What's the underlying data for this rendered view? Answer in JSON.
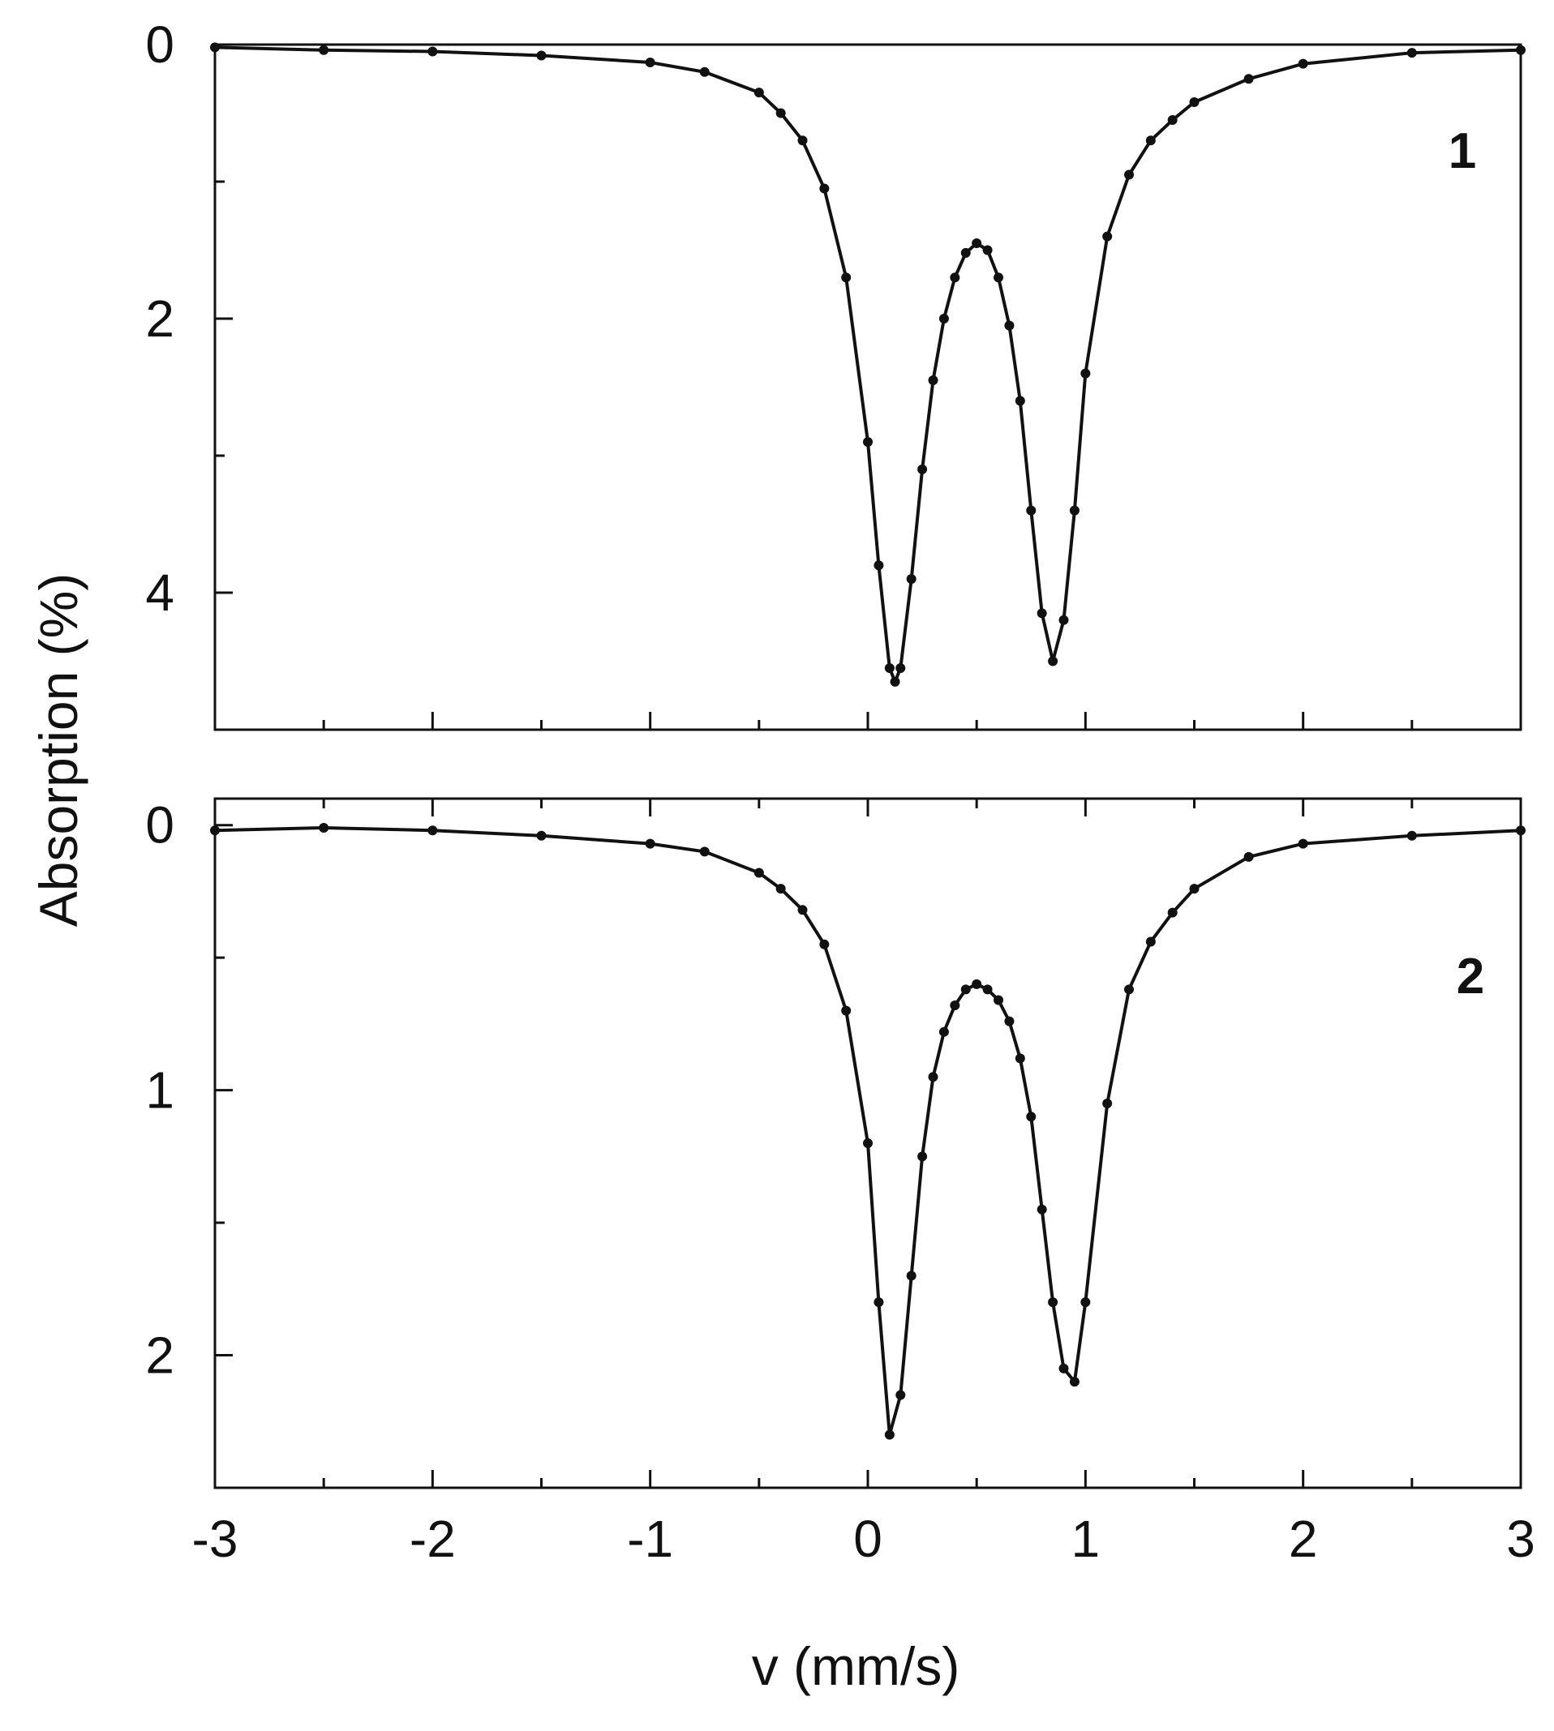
{
  "figure": {
    "ylabel": "Absorption (%)",
    "xlabel": "v (mm/s)"
  },
  "chart_data": [
    {
      "type": "scatter",
      "panel_label": "1",
      "xlim": [
        -3,
        3
      ],
      "ylim": [
        0,
        5.0
      ],
      "y_inverted": true,
      "x_ticks": [
        -3,
        -2,
        -1,
        0,
        1,
        2,
        3
      ],
      "x_tick_labels": [
        "-3",
        "-2",
        "-1",
        "0",
        "1",
        "2",
        "3"
      ],
      "y_ticks": [
        0,
        2,
        4
      ],
      "y_tick_labels": [
        "0",
        "2",
        "4"
      ],
      "series": [
        {
          "style": "points+fit",
          "color": "#111111",
          "x": [
            -3.0,
            -2.5,
            -2.0,
            -1.5,
            -1.0,
            -0.75,
            -0.5,
            -0.4,
            -0.3,
            -0.2,
            -0.1,
            0.0,
            0.05,
            0.1,
            0.125,
            0.15,
            0.2,
            0.25,
            0.3,
            0.35,
            0.4,
            0.45,
            0.5,
            0.55,
            0.6,
            0.65,
            0.7,
            0.75,
            0.8,
            0.85,
            0.9,
            0.95,
            1.0,
            1.1,
            1.2,
            1.3,
            1.4,
            1.5,
            1.75,
            2.0,
            2.5,
            3.0
          ],
          "y": [
            0.02,
            0.04,
            0.05,
            0.08,
            0.13,
            0.2,
            0.35,
            0.5,
            0.7,
            1.05,
            1.7,
            2.9,
            3.8,
            4.55,
            4.65,
            4.55,
            3.9,
            3.1,
            2.45,
            2.0,
            1.7,
            1.52,
            1.45,
            1.5,
            1.7,
            2.05,
            2.6,
            3.4,
            4.15,
            4.5,
            4.2,
            3.4,
            2.4,
            1.4,
            0.95,
            0.7,
            0.55,
            0.42,
            0.25,
            0.14,
            0.06,
            0.04
          ]
        }
      ]
    },
    {
      "type": "scatter",
      "panel_label": "2",
      "xlim": [
        -3,
        3
      ],
      "ylim": [
        -0.1,
        2.5
      ],
      "y_inverted": true,
      "x_ticks": [
        -3,
        -2,
        -1,
        0,
        1,
        2,
        3
      ],
      "x_tick_labels": [
        "-3",
        "-2",
        "-1",
        "0",
        "1",
        "2",
        "3"
      ],
      "y_ticks": [
        0,
        1,
        2
      ],
      "y_tick_labels": [
        "0",
        "1",
        "2"
      ],
      "series": [
        {
          "style": "points+fit",
          "color": "#111111",
          "x": [
            -3.0,
            -2.5,
            -2.0,
            -1.5,
            -1.0,
            -0.75,
            -0.5,
            -0.4,
            -0.3,
            -0.2,
            -0.1,
            0.0,
            0.05,
            0.1,
            0.15,
            0.2,
            0.25,
            0.3,
            0.35,
            0.4,
            0.45,
            0.5,
            0.55,
            0.6,
            0.65,
            0.7,
            0.75,
            0.8,
            0.85,
            0.9,
            0.95,
            1.0,
            1.1,
            1.2,
            1.3,
            1.4,
            1.5,
            1.75,
            2.0,
            2.5,
            3.0
          ],
          "y": [
            0.02,
            0.01,
            0.02,
            0.04,
            0.07,
            0.1,
            0.18,
            0.24,
            0.32,
            0.45,
            0.7,
            1.2,
            1.8,
            2.3,
            2.15,
            1.7,
            1.25,
            0.95,
            0.78,
            0.68,
            0.62,
            0.6,
            0.62,
            0.66,
            0.74,
            0.88,
            1.1,
            1.45,
            1.8,
            2.05,
            2.1,
            1.8,
            1.05,
            0.62,
            0.44,
            0.33,
            0.24,
            0.12,
            0.07,
            0.04,
            0.02
          ]
        }
      ]
    }
  ]
}
